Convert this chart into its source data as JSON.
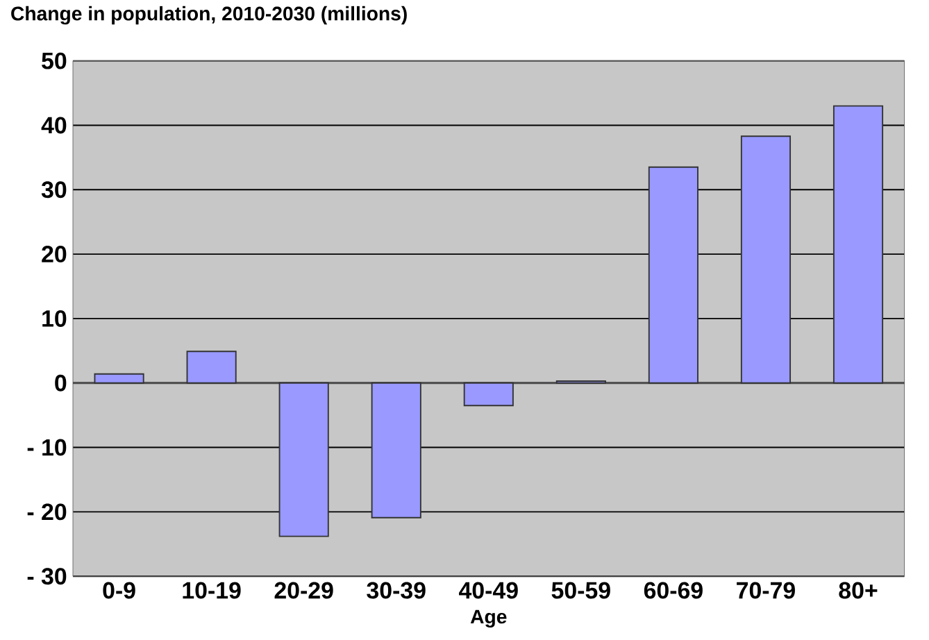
{
  "chart_data": {
    "type": "bar",
    "title": "Change in population, 2010-2030  (millions)",
    "xlabel": "Age",
    "categories": [
      "0-9",
      "10-19",
      "20-29",
      "30-39",
      "40-49",
      "50-59",
      "60-69",
      "70-79",
      "80+"
    ],
    "values": [
      1.4,
      4.9,
      -23.8,
      -20.9,
      -3.5,
      0.3,
      33.5,
      38.3,
      43
    ],
    "color": "#9999ff",
    "ylim": [
      -30,
      50
    ],
    "yticks": [
      {
        "value": -30,
        "label": "-  30"
      },
      {
        "value": -20,
        "label": "-  20"
      },
      {
        "value": -10,
        "label": "-  10"
      },
      0,
      10,
      20,
      30,
      40,
      50
    ],
    "grid": "y"
  }
}
